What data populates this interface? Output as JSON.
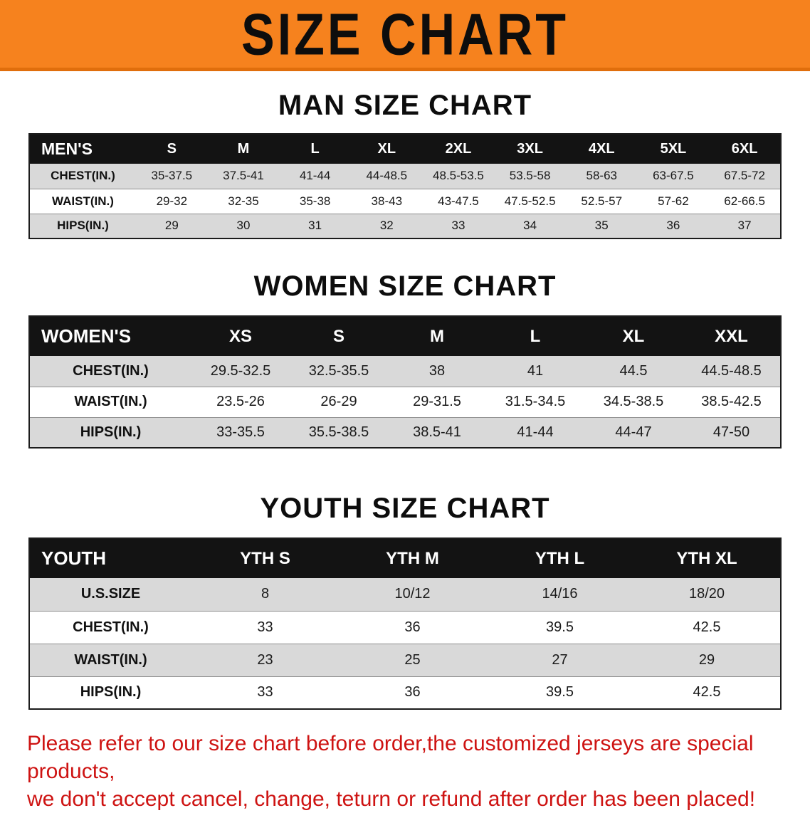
{
  "banner": {
    "title": "SIZE CHART"
  },
  "colors": {
    "banner_bg": "#f6821e",
    "header_bg": "#131313",
    "row_alt": "#d9d9d9",
    "disclaimer_text": "#ce1312"
  },
  "sections": [
    {
      "heading": "MAN SIZE CHART",
      "table": {
        "header": [
          "MEN'S",
          "S",
          "M",
          "L",
          "XL",
          "2XL",
          "3XL",
          "4XL",
          "5XL",
          "6XL"
        ],
        "rows": [
          [
            "CHEST(IN.)",
            "35-37.5",
            "37.5-41",
            "41-44",
            "44-48.5",
            "48.5-53.5",
            "53.5-58",
            "58-63",
            "63-67.5",
            "67.5-72"
          ],
          [
            "WAIST(IN.)",
            "29-32",
            "32-35",
            "35-38",
            "38-43",
            "43-47.5",
            "47.5-52.5",
            "52.5-57",
            "57-62",
            "62-66.5"
          ],
          [
            "HIPS(IN.)",
            "29",
            "30",
            "31",
            "32",
            "33",
            "34",
            "35",
            "36",
            "37"
          ]
        ]
      }
    },
    {
      "heading": "WOMEN SIZE CHART",
      "table": {
        "header": [
          "WOMEN'S",
          "XS",
          "S",
          "M",
          "L",
          "XL",
          "XXL"
        ],
        "rows": [
          [
            "CHEST(IN.)",
            "29.5-32.5",
            "32.5-35.5",
            "38",
            "41",
            "44.5",
            "44.5-48.5"
          ],
          [
            "WAIST(IN.)",
            "23.5-26",
            "26-29",
            "29-31.5",
            "31.5-34.5",
            "34.5-38.5",
            "38.5-42.5"
          ],
          [
            "HIPS(IN.)",
            "33-35.5",
            "35.5-38.5",
            "38.5-41",
            "41-44",
            "44-47",
            "47-50"
          ]
        ]
      }
    },
    {
      "heading": "YOUTH SIZE CHART",
      "table": {
        "header": [
          "YOUTH",
          "YTH S",
          "YTH M",
          "YTH L",
          "YTH XL"
        ],
        "rows": [
          [
            "U.S.SIZE",
            "8",
            "10/12",
            "14/16",
            "18/20"
          ],
          [
            "CHEST(IN.)",
            "33",
            "36",
            "39.5",
            "42.5"
          ],
          [
            "WAIST(IN.)",
            "23",
            "25",
            "27",
            "29"
          ],
          [
            "HIPS(IN.)",
            "33",
            "36",
            "39.5",
            "42.5"
          ]
        ]
      }
    }
  ],
  "disclaimer": {
    "line1": "Please refer to our size chart before order,the customized jerseys are special products,",
    "line2": "we don't accept cancel, change, teturn or refund after order has been placed!"
  }
}
